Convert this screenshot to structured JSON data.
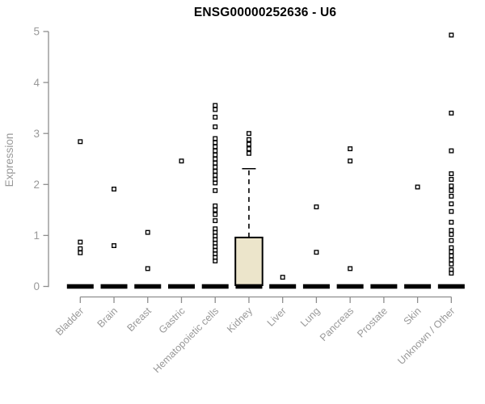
{
  "chart_data": {
    "type": "boxplot",
    "title": "ENSG00000252636 - U6",
    "xlabel": "",
    "ylabel": "Expression",
    "ylim": [
      0,
      5
    ],
    "yticks": [
      0,
      1,
      2,
      3,
      4,
      5
    ],
    "grid": false,
    "legend": false,
    "categories": [
      "Bladder",
      "Brain",
      "Breast",
      "Gastric",
      "Hematopoietic cells",
      "Kidney",
      "Liver",
      "Lung",
      "Pancreas",
      "Prostate",
      "Skin",
      "Unknown / Other"
    ],
    "series": [
      {
        "category": "Bladder",
        "median": 0,
        "q1": 0,
        "q3": 0,
        "whisker_low": 0,
        "whisker_high": 0,
        "points": [
          2.84,
          0.87,
          0.74,
          0.66
        ]
      },
      {
        "category": "Brain",
        "median": 0,
        "q1": 0,
        "q3": 0,
        "whisker_low": 0,
        "whisker_high": 0,
        "points": [
          1.91,
          0.8
        ]
      },
      {
        "category": "Breast",
        "median": 0,
        "q1": 0,
        "q3": 0,
        "whisker_low": 0,
        "whisker_high": 0,
        "points": [
          1.06,
          0.35
        ]
      },
      {
        "category": "Gastric",
        "median": 0,
        "q1": 0,
        "q3": 0,
        "whisker_low": 0,
        "whisker_high": 0,
        "points": [
          2.46
        ]
      },
      {
        "category": "Hematopoietic cells",
        "median": 0,
        "q1": 0,
        "q3": 0,
        "whisker_low": 0,
        "whisker_high": 0,
        "points": [
          3.55,
          3.47,
          3.32,
          3.13,
          2.9,
          2.82,
          2.74,
          2.66,
          2.58,
          2.5,
          2.42,
          2.34,
          2.26,
          2.18,
          2.1,
          2.03,
          1.88,
          1.58,
          1.5,
          1.41,
          1.29,
          1.13,
          1.06,
          0.99,
          0.92,
          0.85,
          0.78,
          0.71,
          0.64,
          0.57,
          0.5
        ]
      },
      {
        "category": "Kidney",
        "median": 0,
        "q1": 0,
        "q3": 0.96,
        "whisker_low": 0,
        "whisker_high": 2.31,
        "points": [
          3.0,
          2.88,
          2.79,
          2.7,
          2.61
        ]
      },
      {
        "category": "Liver",
        "median": 0,
        "q1": 0,
        "q3": 0,
        "whisker_low": 0,
        "whisker_high": 0,
        "points": [
          0.18
        ]
      },
      {
        "category": "Lung",
        "median": 0,
        "q1": 0,
        "q3": 0,
        "whisker_low": 0,
        "whisker_high": 0,
        "points": [
          1.56,
          0.67
        ]
      },
      {
        "category": "Pancreas",
        "median": 0,
        "q1": 0,
        "q3": 0,
        "whisker_low": 0,
        "whisker_high": 0,
        "points": [
          2.7,
          2.46,
          0.35
        ]
      },
      {
        "category": "Prostate",
        "median": 0,
        "q1": 0,
        "q3": 0,
        "whisker_low": 0,
        "whisker_high": 0,
        "points": []
      },
      {
        "category": "Skin",
        "median": 0,
        "q1": 0,
        "q3": 0,
        "whisker_low": 0,
        "whisker_high": 0,
        "points": [
          1.95
        ]
      },
      {
        "category": "Unknown / Other",
        "median": 0,
        "q1": 0,
        "q3": 0,
        "whisker_low": 0,
        "whisker_high": 0,
        "points": [
          4.93,
          3.4,
          2.66,
          2.21,
          2.1,
          1.97,
          1.88,
          1.77,
          1.62,
          1.47,
          1.26,
          1.1,
          1.02,
          0.9,
          0.76,
          0.68,
          0.6,
          0.52,
          0.44,
          0.33,
          0.26
        ]
      }
    ],
    "colors": {
      "box_fill": "#ece5cb",
      "box_border": "#000000",
      "point": "#000000",
      "median_bar": "#000000",
      "axis": "#8e8e8e",
      "tick_label": "#999999",
      "title": "#000000",
      "background": "#ffffff"
    }
  }
}
